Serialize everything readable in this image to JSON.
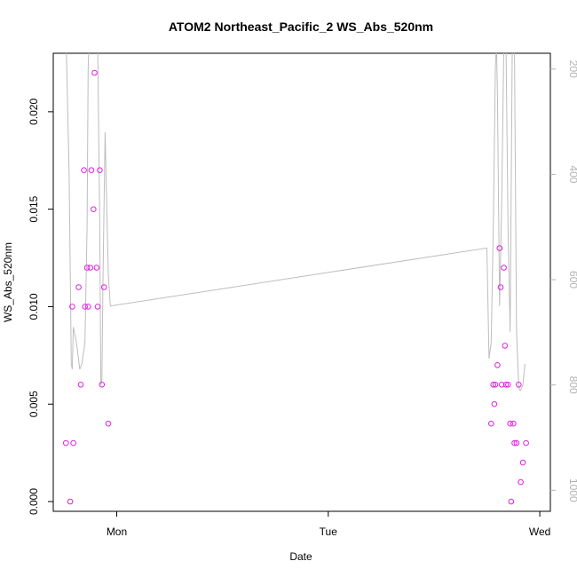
{
  "chart_data": {
    "type": "scatter",
    "title": "ATOM2 Northeast_Pacific_2 WS_Abs_520nm",
    "xlabel": "Date",
    "ylabel": "WS_Abs_520nm",
    "x_ticks": [
      {
        "label": "Mon",
        "value": 1.0
      },
      {
        "label": "Tue",
        "value": 2.0
      },
      {
        "label": "Wed",
        "value": 3.0
      }
    ],
    "xlim": [
      0.7,
      3.05
    ],
    "ylim": [
      -0.0005,
      0.023
    ],
    "y_ticks": [
      0.0,
      0.005,
      0.01,
      0.015,
      0.02
    ],
    "y_tick_labels": [
      "0.000",
      "0.005",
      "0.010",
      "0.015",
      "0.020"
    ],
    "y2lim": [
      1040,
      170
    ],
    "y2_ticks": [
      200,
      400,
      600,
      800,
      1000
    ],
    "y2_tick_labels": [
      "200",
      "400",
      "600",
      "800",
      "1000"
    ],
    "grid": false,
    "colors": {
      "points": "#e020e0",
      "line": "#bdbdbd"
    },
    "series": [
      {
        "type": "scatter",
        "axis": "left",
        "points": [
          [
            0.76,
            0.003
          ],
          [
            0.78,
            0.0
          ],
          [
            0.79,
            0.01
          ],
          [
            0.795,
            0.003
          ],
          [
            0.82,
            0.011
          ],
          [
            0.83,
            0.006
          ],
          [
            0.845,
            0.017
          ],
          [
            0.85,
            0.01
          ],
          [
            0.86,
            0.012
          ],
          [
            0.865,
            0.01
          ],
          [
            0.875,
            0.012
          ],
          [
            0.88,
            0.017
          ],
          [
            0.89,
            0.015
          ],
          [
            0.895,
            0.022
          ],
          [
            0.905,
            0.012
          ],
          [
            0.91,
            0.01
          ],
          [
            0.92,
            0.017
          ],
          [
            0.93,
            0.006
          ],
          [
            0.94,
            0.011
          ],
          [
            0.96,
            0.004
          ],
          [
            2.77,
            0.004
          ],
          [
            2.78,
            0.006
          ],
          [
            2.785,
            0.005
          ],
          [
            2.79,
            0.006
          ],
          [
            2.8,
            0.007
          ],
          [
            2.81,
            0.013
          ],
          [
            2.815,
            0.011
          ],
          [
            2.82,
            0.006
          ],
          [
            2.83,
            0.012
          ],
          [
            2.835,
            0.008
          ],
          [
            2.84,
            0.006
          ],
          [
            2.85,
            0.006
          ],
          [
            2.86,
            0.004
          ],
          [
            2.865,
            0.0
          ],
          [
            2.875,
            0.004
          ],
          [
            2.88,
            0.003
          ],
          [
            2.89,
            0.003
          ],
          [
            2.9,
            0.006
          ],
          [
            2.91,
            0.001
          ],
          [
            2.92,
            0.002
          ],
          [
            2.935,
            0.003
          ]
        ]
      },
      {
        "type": "line",
        "axis": "right",
        "points": [
          [
            0.76,
            130
          ],
          [
            0.775,
            400
          ],
          [
            0.785,
            760
          ],
          [
            0.79,
            770
          ],
          [
            0.795,
            690
          ],
          [
            0.81,
            720
          ],
          [
            0.825,
            770
          ],
          [
            0.835,
            760
          ],
          [
            0.85,
            720
          ],
          [
            0.86,
            500
          ],
          [
            0.865,
            200
          ],
          [
            0.87,
            130
          ],
          [
            0.88,
            130
          ],
          [
            0.89,
            130
          ],
          [
            0.9,
            130
          ],
          [
            0.91,
            150
          ],
          [
            0.92,
            500
          ],
          [
            0.925,
            800
          ],
          [
            0.93,
            790
          ],
          [
            0.935,
            600
          ],
          [
            0.945,
            320
          ],
          [
            0.96,
            590
          ],
          [
            0.97,
            650
          ],
          [
            2.75,
            540
          ],
          [
            2.76,
            750
          ],
          [
            2.77,
            720
          ],
          [
            2.78,
            500
          ],
          [
            2.79,
            200
          ],
          [
            2.795,
            150
          ],
          [
            2.8,
            250
          ],
          [
            2.81,
            650
          ],
          [
            2.82,
            450
          ],
          [
            2.83,
            150
          ],
          [
            2.84,
            150
          ],
          [
            2.85,
            500
          ],
          [
            2.86,
            700
          ],
          [
            2.87,
            150
          ],
          [
            2.88,
            150
          ],
          [
            2.89,
            700
          ],
          [
            2.9,
            800
          ],
          [
            2.905,
            810
          ],
          [
            2.91,
            810
          ],
          [
            2.92,
            800
          ],
          [
            2.93,
            760
          ]
        ]
      }
    ]
  }
}
